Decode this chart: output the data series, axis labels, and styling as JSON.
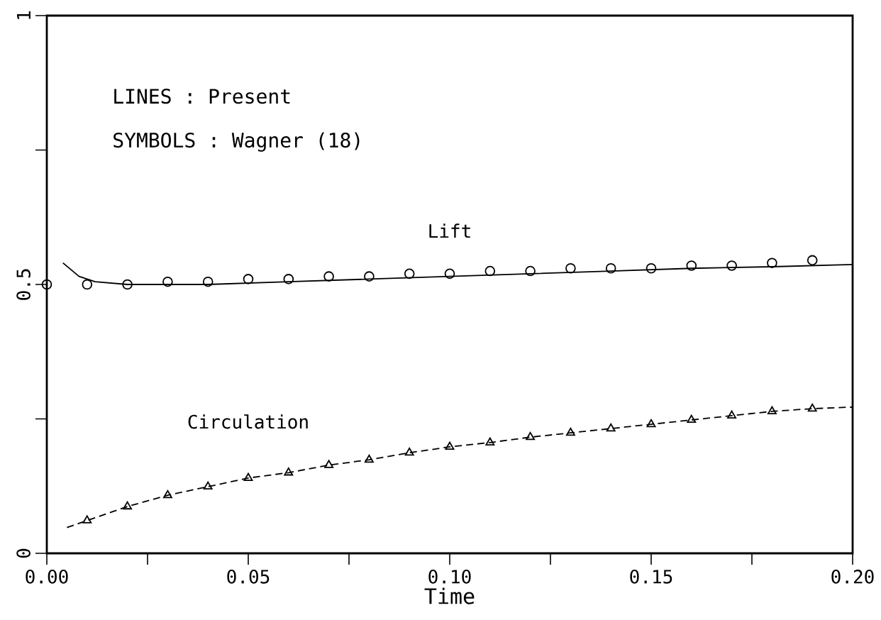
{
  "chart_data": {
    "type": "line",
    "xlabel": "Time",
    "xlim": [
      0,
      0.2
    ],
    "ylim": [
      0,
      1
    ],
    "xticks": [
      {
        "value": 0,
        "label": "0.00"
      },
      {
        "value": 0.025,
        "label": null
      },
      {
        "value": 0.05,
        "label": "0.05"
      },
      {
        "value": 0.075,
        "label": null
      },
      {
        "value": 0.1,
        "label": "0.10"
      },
      {
        "value": 0.125,
        "label": null
      },
      {
        "value": 0.15,
        "label": "0.15"
      },
      {
        "value": 0.175,
        "label": null
      },
      {
        "value": 0.2,
        "label": "0.20"
      }
    ],
    "yticks": [
      0,
      {
        "value": 0.25,
        "label": null
      },
      0.5,
      {
        "value": 0.75,
        "label": null
      },
      1
    ],
    "series": [
      {
        "color": "#000000",
        "line_style": "solid",
        "marker": "none",
        "x": [
          0.004,
          0.008,
          0.012,
          0.02,
          0.04,
          0.06,
          0.08,
          0.1,
          0.12,
          0.14,
          0.16,
          0.18,
          0.2
        ],
        "values": [
          0.54,
          0.515,
          0.505,
          0.5,
          0.5,
          0.505,
          0.51,
          0.515,
          0.52,
          0.525,
          0.53,
          0.533,
          0.537
        ]
      },
      {
        "type": "scatter",
        "color": "#000000",
        "marker": "circle",
        "x": [
          0,
          0.01,
          0.02,
          0.03,
          0.04,
          0.05,
          0.06,
          0.07,
          0.08,
          0.09,
          0.1,
          0.11,
          0.12,
          0.13,
          0.14,
          0.15,
          0.16,
          0.17,
          0.18,
          0.19
        ],
        "values": [
          0.5,
          0.5,
          0.5,
          0.505,
          0.505,
          0.51,
          0.51,
          0.515,
          0.515,
          0.52,
          0.52,
          0.525,
          0.525,
          0.53,
          0.53,
          0.53,
          0.535,
          0.535,
          0.54,
          0.545
        ]
      },
      {
        "color": "#000000",
        "line_style": "dashed",
        "marker": "none",
        "x": [
          0.005,
          0.01,
          0.02,
          0.03,
          0.04,
          0.05,
          0.06,
          0.07,
          0.08,
          0.09,
          0.1,
          0.11,
          0.12,
          0.13,
          0.14,
          0.15,
          0.16,
          0.17,
          0.18,
          0.19,
          0.2
        ],
        "values": [
          0.048,
          0.061,
          0.087,
          0.108,
          0.124,
          0.14,
          0.15,
          0.164,
          0.174,
          0.187,
          0.198,
          0.206,
          0.216,
          0.224,
          0.232,
          0.24,
          0.248,
          0.256,
          0.264,
          0.269,
          0.272
        ]
      },
      {
        "type": "scatter",
        "color": "#000000",
        "marker": "triangle",
        "x": [
          0.01,
          0.02,
          0.03,
          0.04,
          0.05,
          0.06,
          0.07,
          0.08,
          0.09,
          0.1,
          0.11,
          0.12,
          0.13,
          0.14,
          0.15,
          0.16,
          0.17,
          0.18,
          0.19
        ],
        "values": [
          0.061,
          0.087,
          0.108,
          0.124,
          0.14,
          0.15,
          0.164,
          0.174,
          0.187,
          0.198,
          0.206,
          0.216,
          0.224,
          0.232,
          0.24,
          0.248,
          0.256,
          0.264,
          0.269
        ]
      }
    ],
    "annotations": [
      "LINES   : Present",
      "SYMBOLS : Wagner (18)",
      "Lift",
      "Circulation"
    ]
  }
}
